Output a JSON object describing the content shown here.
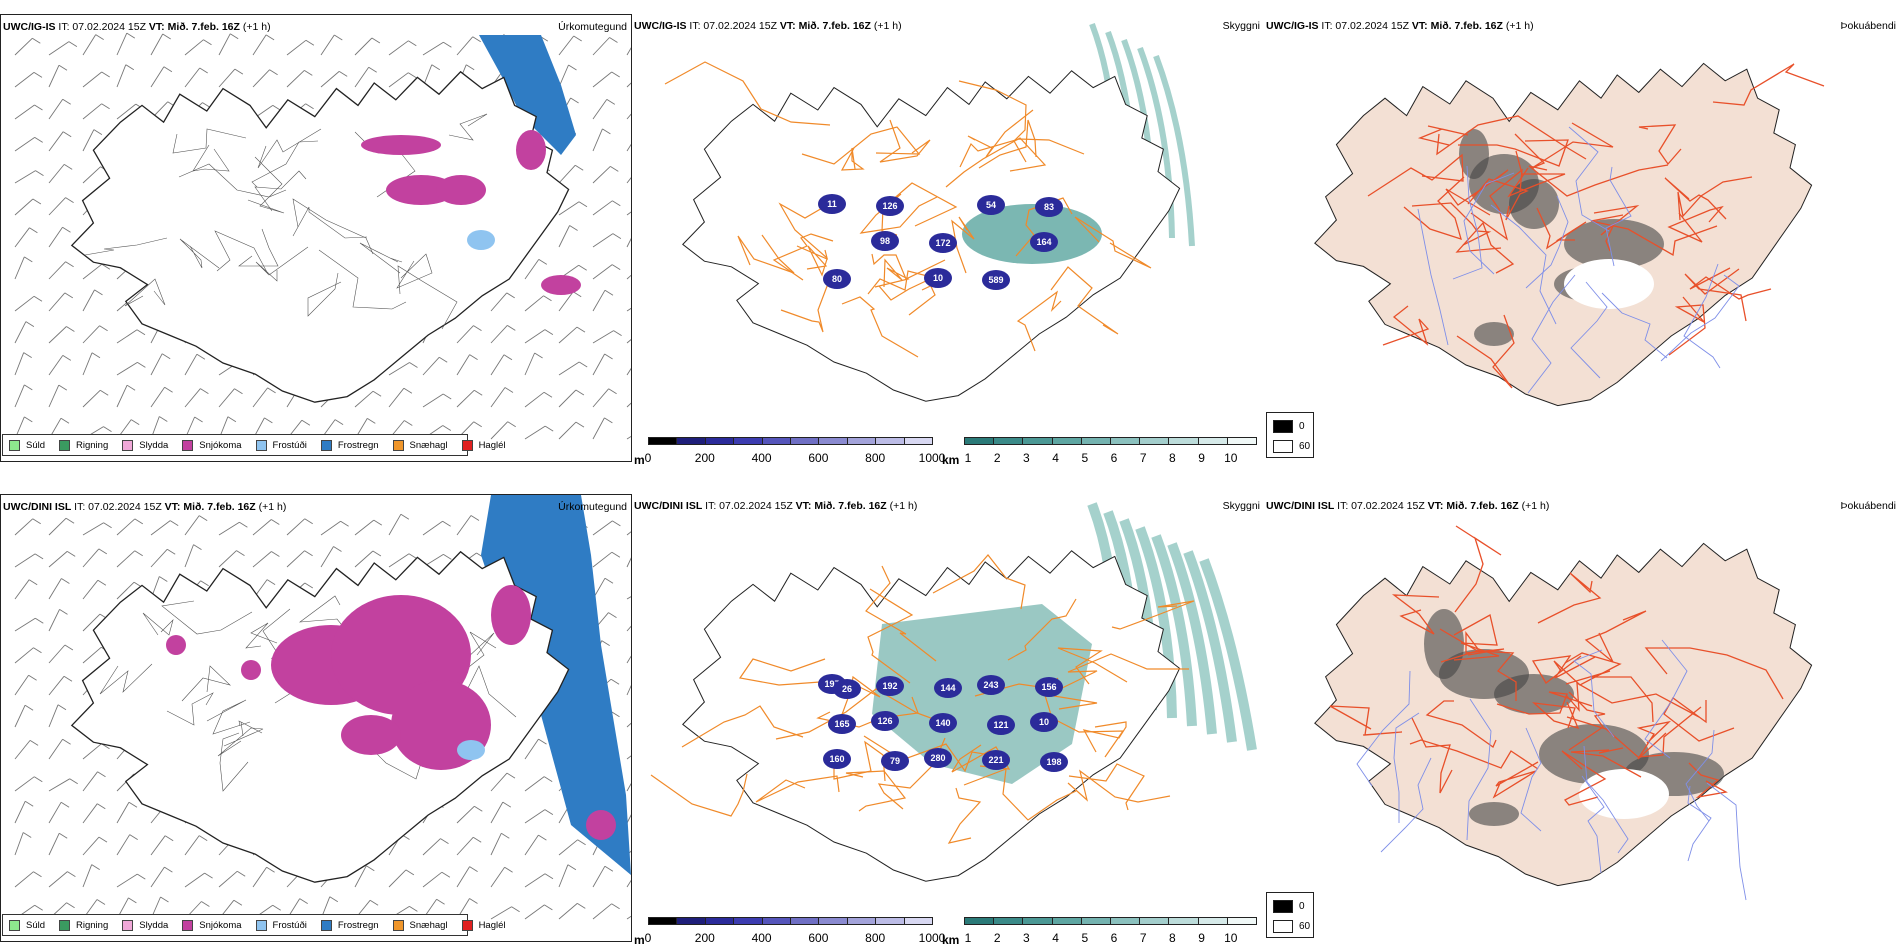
{
  "rows": [
    {
      "model": "UWC/IG-IS",
      "it_label": "IT: 07.02.2024 15Z",
      "vt_label": "VT: Mið. 7.feb. 16Z",
      "lead": "(+1 h)",
      "precip_title": "Úrkomutegund",
      "cloud_title": "Skyggni",
      "fog_title": "Þokuábendi",
      "cloud_labels": [
        "11",
        "98",
        "10",
        "54",
        "164",
        "80",
        "126",
        "172",
        "589",
        "83"
      ]
    },
    {
      "model": "UWC/DINI ISL",
      "it_label": "IT: 07.02.2024 15Z",
      "vt_label": "VT: Mið. 7.feb. 16Z",
      "lead": "(+1 h)",
      "precip_title": "Úrkomutegund",
      "cloud_title": "Skyggni",
      "fog_title": "Þokuábendi",
      "cloud_labels": [
        "197",
        "126",
        "280",
        "243",
        "10",
        "160",
        "192",
        "140",
        "221",
        "156",
        "165",
        "79",
        "144",
        "121",
        "198",
        "26"
      ]
    }
  ],
  "precip_legend": [
    {
      "label": "Súld",
      "color": "#8ee88e"
    },
    {
      "label": "Rigning",
      "color": "#3a9a60"
    },
    {
      "label": "Slydda",
      "color": "#f0a8d8"
    },
    {
      "label": "Snjókoma",
      "color": "#c2419f"
    },
    {
      "label": "Frostúði",
      "color": "#8fc4f0"
    },
    {
      "label": "Frostregn",
      "color": "#2f7cc4"
    },
    {
      "label": "Snæhagl",
      "color": "#f0962a"
    },
    {
      "label": "Haglél",
      "color": "#e02020"
    }
  ],
  "ceiling_scale": {
    "unit": "m",
    "ticks": [
      "0",
      "200",
      "400",
      "600",
      "800",
      "1000"
    ],
    "colors": [
      "#000000",
      "#1e1e7a",
      "#2b2b9a",
      "#3c3cb0",
      "#5555bb",
      "#6f6fc4",
      "#8a8ad0",
      "#a3a3da",
      "#bcbce6",
      "#d8d8f2"
    ]
  },
  "visibility_scale": {
    "unit": "km",
    "ticks": [
      "1",
      "2",
      "3",
      "4",
      "5",
      "6",
      "7",
      "8",
      "9",
      "10"
    ],
    "colors": [
      "#2a7a78",
      "#3a8a88",
      "#4b9895",
      "#5ea6a2",
      "#74b3b0",
      "#8bc1be",
      "#a3cecc",
      "#bcdcda",
      "#d6eae9",
      "#f0f8f7"
    ]
  },
  "fog_scale": {
    "values": [
      "0",
      "60"
    ],
    "colors": [
      "#000000",
      "#ffffff"
    ]
  },
  "colors": {
    "roads": "#f08a2a",
    "roads_dark": "#e8502a",
    "land_fog": "#f3e0d4",
    "rivers": "#7f8fe8",
    "frost_rain": "#2f7cc4",
    "snow": "#c2419f"
  }
}
